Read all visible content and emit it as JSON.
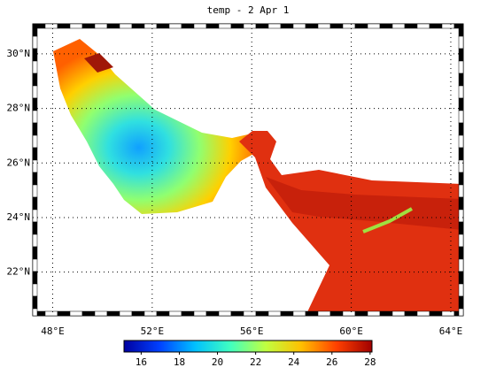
{
  "chart_data": {
    "type": "map",
    "title": "temp - 2 Apr 1",
    "xlim": [
      47.2,
      64.5
    ],
    "ylim": [
      20.4,
      31.1
    ],
    "xticks": [
      {
        "value": 48,
        "label": "48°E"
      },
      {
        "value": 52,
        "label": "52°E"
      },
      {
        "value": 56,
        "label": "56°E"
      },
      {
        "value": 60,
        "label": "60°E"
      },
      {
        "value": 64,
        "label": "64°E"
      }
    ],
    "yticks": [
      {
        "value": 22,
        "label": "22°N"
      },
      {
        "value": 24,
        "label": "24°N"
      },
      {
        "value": 26,
        "label": "26°N"
      },
      {
        "value": 28,
        "label": "28°N"
      },
      {
        "value": 30,
        "label": "30°N"
      }
    ],
    "grid": true,
    "colorbar": {
      "lim": [
        15.1,
        28.1
      ],
      "ticks": [
        16,
        18,
        20,
        22,
        24,
        26,
        28
      ],
      "colormap": [
        "#0000a0",
        "#0040ff",
        "#00c0ff",
        "#40ffc0",
        "#c0ff40",
        "#ffc000",
        "#ff4000",
        "#a00000"
      ]
    }
  }
}
